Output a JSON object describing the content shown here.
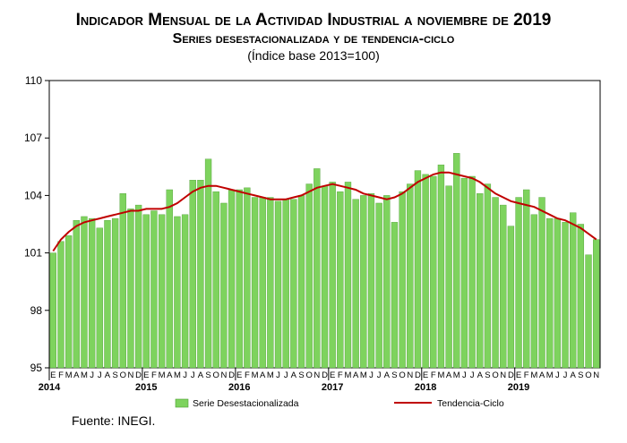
{
  "title": "Indicador Mensual de la Actividad Industrial a noviembre de 2019",
  "subtitle": "Series desestacionalizada y de tendencia-ciclo",
  "note": "(Índice base 2013=100)",
  "source": "Fuente: INEGI.",
  "colors": {
    "bar": "#7ed35e",
    "bar_stroke": "#4e9e35",
    "line": "#c00000",
    "frame": "#000000"
  },
  "chart_data": {
    "type": "bar",
    "ylim": [
      95,
      110
    ],
    "yticks": [
      95,
      98,
      101,
      104,
      107,
      110
    ],
    "month_labels": [
      "E",
      "F",
      "M",
      "A",
      "M",
      "J",
      "J",
      "A",
      "S",
      "O",
      "N",
      "D"
    ],
    "year_labels": [
      {
        "label": "2014",
        "index": 0
      },
      {
        "label": "2015",
        "index": 12
      },
      {
        "label": "2016",
        "index": 24
      },
      {
        "label": "2017",
        "index": 36
      },
      {
        "label": "2018",
        "index": 48
      },
      {
        "label": "2019",
        "index": 60
      }
    ],
    "series": [
      {
        "name": "Serie Desestacionalizada",
        "type": "bar",
        "values": [
          101.0,
          101.6,
          101.9,
          102.7,
          102.9,
          102.8,
          102.3,
          102.7,
          102.8,
          104.1,
          103.3,
          103.5,
          103.0,
          103.2,
          103.0,
          104.3,
          102.9,
          103.0,
          104.8,
          104.8,
          105.9,
          104.2,
          103.6,
          104.3,
          104.3,
          104.4,
          103.9,
          103.9,
          103.9,
          103.7,
          103.8,
          103.8,
          104.0,
          104.6,
          105.4,
          104.5,
          104.7,
          104.2,
          104.7,
          103.8,
          104.0,
          104.1,
          103.6,
          104.0,
          102.6,
          104.2,
          104.6,
          105.3,
          105.1,
          105.0,
          105.6,
          104.5,
          106.2,
          104.9,
          105.0,
          104.1,
          104.6,
          103.9,
          103.5,
          102.4,
          103.9,
          104.3,
          103.0,
          103.9,
          102.8,
          102.8,
          102.6,
          103.1,
          102.5,
          100.9,
          101.7
        ]
      },
      {
        "name": "Tendencia-Ciclo",
        "type": "line",
        "values": [
          101.1,
          101.7,
          102.1,
          102.4,
          102.6,
          102.7,
          102.8,
          102.9,
          103.0,
          103.1,
          103.2,
          103.2,
          103.3,
          103.3,
          103.3,
          103.4,
          103.6,
          103.9,
          104.2,
          104.4,
          104.5,
          104.5,
          104.4,
          104.3,
          104.2,
          104.1,
          104.0,
          103.9,
          103.8,
          103.8,
          103.8,
          103.9,
          104.0,
          104.2,
          104.4,
          104.5,
          104.6,
          104.5,
          104.4,
          104.3,
          104.1,
          104.0,
          103.9,
          103.8,
          103.9,
          104.1,
          104.4,
          104.7,
          104.9,
          105.1,
          105.2,
          105.2,
          105.1,
          105.0,
          104.9,
          104.7,
          104.4,
          104.1,
          103.9,
          103.7,
          103.6,
          103.5,
          103.4,
          103.2,
          103.0,
          102.8,
          102.7,
          102.5,
          102.3,
          102.0,
          101.7
        ]
      }
    ],
    "legend": [
      "Serie Desestacionalizada",
      "Tendencia-Ciclo"
    ]
  }
}
